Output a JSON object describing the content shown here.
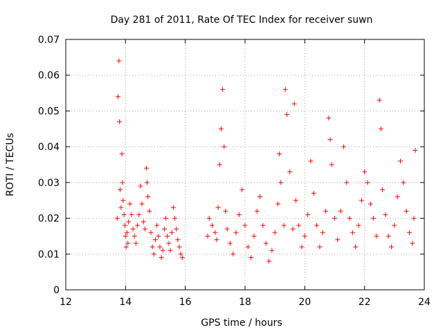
{
  "chart_data": {
    "type": "scatter",
    "title": "Day 281 of 2011, Rate Of TEC Index for receiver suwn",
    "xlabel": "GPS time / hours",
    "ylabel": "ROTI / TECUs",
    "xlim": [
      12,
      24
    ],
    "ylim": [
      0,
      0.07
    ],
    "xticks": [
      "12",
      "14",
      "16",
      "18",
      "20",
      "22",
      "24"
    ],
    "yticks": [
      "0",
      "0.01",
      "0.02",
      "0.03",
      "0.04",
      "0.05",
      "0.06",
      "0.07"
    ],
    "grid": true,
    "marker": "+",
    "color": "#ff0000",
    "series": [
      {
        "x": [
          13.72,
          13.75,
          13.78,
          13.8,
          13.82,
          13.85,
          13.88,
          13.9,
          13.92,
          13.95,
          13.98,
          14.0,
          14.02,
          14.05,
          14.08,
          14.1,
          14.15,
          14.2,
          14.25,
          14.3,
          14.35,
          14.4,
          14.45,
          14.5,
          14.55,
          14.6,
          14.65,
          14.7,
          14.72,
          14.75,
          14.8,
          14.85,
          14.9,
          14.95,
          15.0,
          15.05,
          15.1,
          15.15,
          15.2,
          15.25,
          15.3,
          15.35,
          15.4,
          15.45,
          15.5,
          15.55,
          15.6,
          15.65,
          15.7,
          15.75,
          15.8,
          15.85,
          15.9,
          16.75,
          16.8,
          16.9,
          17.0,
          17.05,
          17.1,
          17.15,
          17.2,
          17.25,
          17.3,
          17.35,
          17.4,
          17.5,
          17.6,
          17.7,
          17.8,
          17.9,
          18.0,
          18.1,
          18.2,
          18.3,
          18.4,
          18.5,
          18.6,
          18.7,
          18.8,
          18.9,
          19.0,
          19.1,
          19.15,
          19.2,
          19.3,
          19.35,
          19.4,
          19.5,
          19.6,
          19.65,
          19.7,
          19.8,
          19.9,
          20.0,
          20.1,
          20.2,
          20.3,
          20.4,
          20.5,
          20.6,
          20.7,
          20.8,
          20.85,
          20.9,
          21.0,
          21.1,
          21.2,
          21.3,
          21.4,
          21.5,
          21.6,
          21.7,
          21.8,
          21.9,
          22.0,
          22.1,
          22.2,
          22.3,
          22.4,
          22.5,
          22.55,
          22.6,
          22.7,
          22.8,
          22.9,
          23.0,
          23.1,
          23.2,
          23.3,
          23.4,
          23.5,
          23.6,
          23.65,
          23.7
        ],
        "y": [
          0.02,
          0.054,
          0.064,
          0.047,
          0.028,
          0.023,
          0.038,
          0.03,
          0.025,
          0.021,
          0.018,
          0.015,
          0.012,
          0.016,
          0.013,
          0.019,
          0.024,
          0.021,
          0.017,
          0.015,
          0.013,
          0.018,
          0.021,
          0.029,
          0.024,
          0.019,
          0.017,
          0.034,
          0.03,
          0.026,
          0.022,
          0.016,
          0.012,
          0.01,
          0.014,
          0.018,
          0.015,
          0.012,
          0.009,
          0.011,
          0.017,
          0.02,
          0.015,
          0.013,
          0.011,
          0.016,
          0.023,
          0.02,
          0.017,
          0.014,
          0.012,
          0.01,
          0.009,
          0.015,
          0.02,
          0.018,
          0.016,
          0.014,
          0.023,
          0.035,
          0.045,
          0.056,
          0.04,
          0.022,
          0.017,
          0.013,
          0.01,
          0.016,
          0.021,
          0.028,
          0.018,
          0.012,
          0.009,
          0.015,
          0.022,
          0.026,
          0.018,
          0.013,
          0.008,
          0.011,
          0.016,
          0.024,
          0.038,
          0.03,
          0.018,
          0.056,
          0.049,
          0.033,
          0.017,
          0.052,
          0.025,
          0.018,
          0.012,
          0.015,
          0.021,
          0.036,
          0.027,
          0.018,
          0.012,
          0.016,
          0.022,
          0.048,
          0.042,
          0.035,
          0.02,
          0.014,
          0.022,
          0.04,
          0.03,
          0.02,
          0.016,
          0.012,
          0.018,
          0.025,
          0.033,
          0.03,
          0.024,
          0.02,
          0.015,
          0.053,
          0.045,
          0.028,
          0.021,
          0.015,
          0.012,
          0.018,
          0.026,
          0.036,
          0.03,
          0.022,
          0.016,
          0.013,
          0.02,
          0.039
        ]
      }
    ]
  }
}
